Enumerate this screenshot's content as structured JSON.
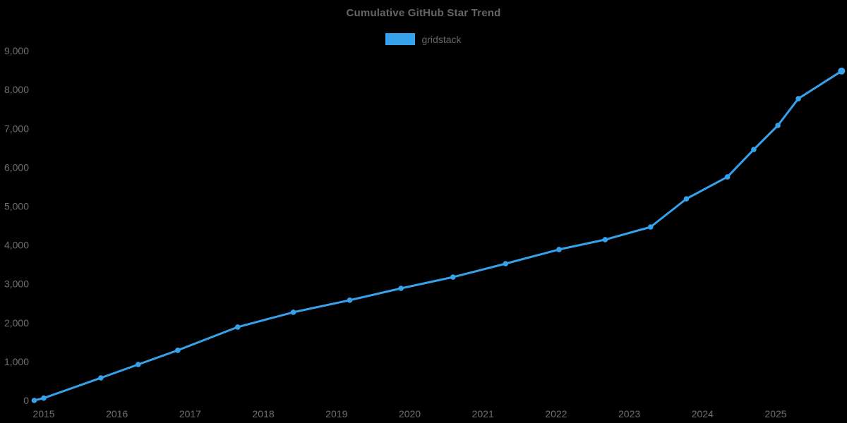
{
  "page": {
    "background_color": "#000000"
  },
  "chart_data": {
    "type": "line",
    "title": "Cumulative GitHub Star Trend",
    "xlabel": "",
    "ylabel": "",
    "xlim": [
      2014.8,
      2025.97
    ],
    "ylim": [
      0,
      9000
    ],
    "grid": false,
    "legend_position": "top",
    "title_color": "#666666",
    "axis_label_color": "#6f6f6f",
    "x_ticks": [
      {
        "value": 2015,
        "label": "2015"
      },
      {
        "value": 2016,
        "label": "2016"
      },
      {
        "value": 2017,
        "label": "2017"
      },
      {
        "value": 2018,
        "label": "2018"
      },
      {
        "value": 2019,
        "label": "2019"
      },
      {
        "value": 2020,
        "label": "2020"
      },
      {
        "value": 2021,
        "label": "2021"
      },
      {
        "value": 2022,
        "label": "2022"
      },
      {
        "value": 2023,
        "label": "2023"
      },
      {
        "value": 2024,
        "label": "2024"
      },
      {
        "value": 2025,
        "label": "2025"
      }
    ],
    "y_ticks": [
      {
        "value": 0,
        "label": "0"
      },
      {
        "value": 1000,
        "label": "1,000"
      },
      {
        "value": 2000,
        "label": "2,000"
      },
      {
        "value": 3000,
        "label": "3,000"
      },
      {
        "value": 4000,
        "label": "4,000"
      },
      {
        "value": 5000,
        "label": "5,000"
      },
      {
        "value": 6000,
        "label": "6,000"
      },
      {
        "value": 7000,
        "label": "7,000"
      },
      {
        "value": 8000,
        "label": "8,000"
      },
      {
        "value": 9000,
        "label": "9,000"
      }
    ],
    "series": [
      {
        "name": "gridstack",
        "color": "#36a2eb",
        "points": [
          [
            2014.87,
            0
          ],
          [
            2015.0,
            60
          ],
          [
            2015.78,
            580
          ],
          [
            2016.29,
            925
          ],
          [
            2016.83,
            1290
          ],
          [
            2017.65,
            1890
          ],
          [
            2018.41,
            2270
          ],
          [
            2019.18,
            2580
          ],
          [
            2019.88,
            2885
          ],
          [
            2020.59,
            3175
          ],
          [
            2021.31,
            3520
          ],
          [
            2022.04,
            3885
          ],
          [
            2022.67,
            4140
          ],
          [
            2023.29,
            4465
          ],
          [
            2023.78,
            5190
          ],
          [
            2024.34,
            5755
          ],
          [
            2024.7,
            6460
          ],
          [
            2025.03,
            7080
          ],
          [
            2025.31,
            7770
          ],
          [
            2025.9,
            8480
          ]
        ]
      }
    ]
  }
}
